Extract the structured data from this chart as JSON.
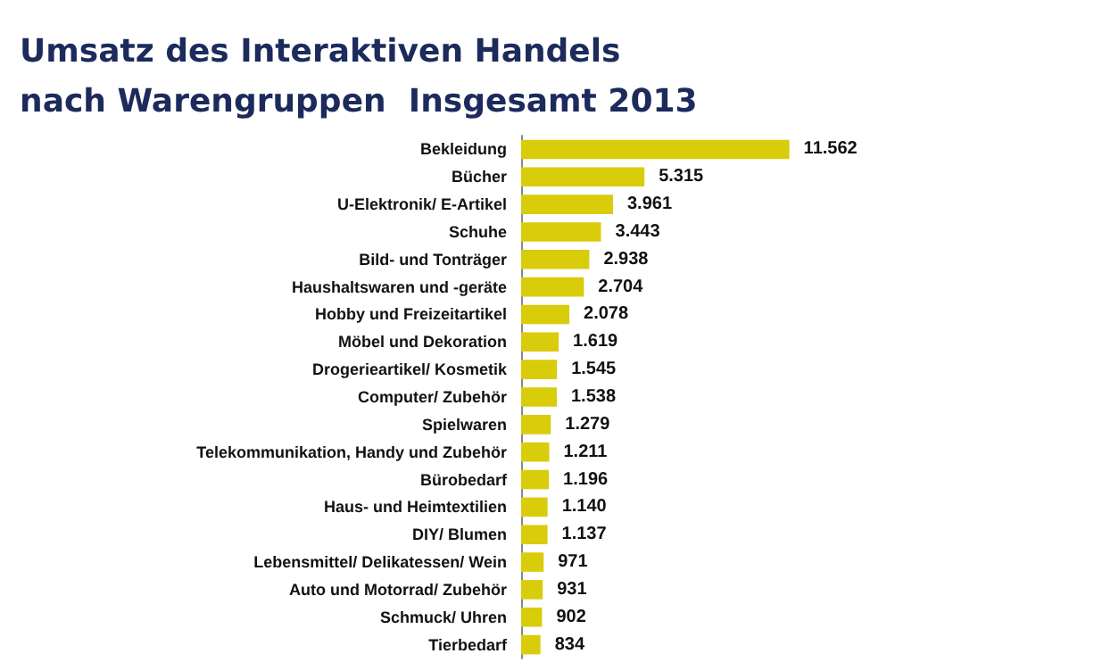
{
  "chart_data": {
    "type": "bar",
    "orientation": "horizontal",
    "title": "Umsatz des Interaktiven Handels\nnach Warengruppen  Insgesamt 2013",
    "categories": [
      "Bekleidung",
      "Bücher",
      "U-Elektronik/ E-Artikel",
      "Schuhe",
      "Bild- und Tonträger",
      "Haushaltswaren und -geräte",
      "Hobby und Freizeitartikel",
      "Möbel und Dekoration",
      "Drogerieartikel/ Kosmetik",
      "Computer/ Zubehör",
      "Spielwaren",
      "Telekommunikation, Handy und Zubehör",
      "Bürobedarf",
      "Haus- und Heimtextilien",
      "DIY/ Blumen",
      "Lebensmittel/ Delikatessen/ Wein",
      "Auto und Motorrad/ Zubehör",
      "Schmuck/ Uhren",
      "Tierbedarf"
    ],
    "values": [
      11562,
      5315,
      3961,
      3443,
      2938,
      2704,
      2078,
      1619,
      1545,
      1538,
      1279,
      1211,
      1196,
      1140,
      1137,
      971,
      931,
      902,
      834
    ],
    "value_labels": [
      "11.562",
      "5.315",
      "3.961",
      "3.443",
      "2.938",
      "2.704",
      "2.078",
      "1.619",
      "1.545",
      "1.538",
      "1.279",
      "1.211",
      "1.196",
      "1.140",
      "1.137",
      "971",
      "931",
      "902",
      "834"
    ],
    "color": "#d9cc0a"
  }
}
